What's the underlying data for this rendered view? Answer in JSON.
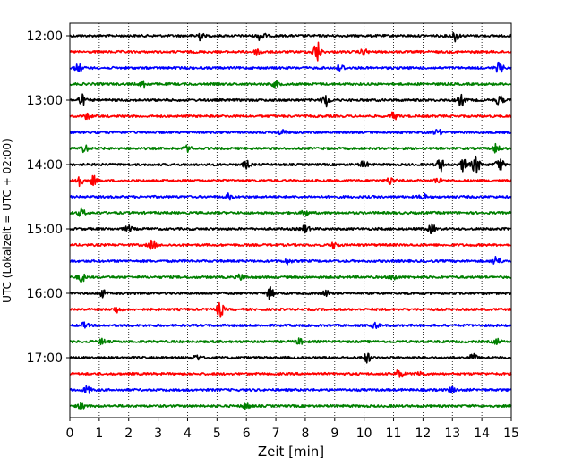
{
  "chart_data": {
    "type": "line",
    "title": "",
    "xlabel": "Zeit  [min]",
    "ylabel": "UTC (Lokalzeit = UTC + 02:00)",
    "x_range": [
      0,
      15
    ],
    "x_ticks": [
      0,
      1,
      2,
      3,
      4,
      5,
      6,
      7,
      8,
      9,
      10,
      11,
      12,
      13,
      14,
      15
    ],
    "y_tick_labels": [
      "12:00",
      "13:00",
      "14:00",
      "15:00",
      "16:00",
      "17:00"
    ],
    "grid": "vertical dotted",
    "colors": [
      "#000000",
      "#ff0000",
      "#0000ff",
      "#008000"
    ],
    "series": [
      {
        "start": "12:00",
        "color": "#000000",
        "events": [
          [
            4.4,
            5
          ],
          [
            6.5,
            6
          ],
          [
            13.1,
            6
          ]
        ]
      },
      {
        "start": "12:15",
        "color": "#ff0000",
        "events": [
          [
            8.4,
            12
          ],
          [
            6.4,
            4
          ],
          [
            10.0,
            3
          ]
        ]
      },
      {
        "start": "12:30",
        "color": "#0000ff",
        "events": [
          [
            0.3,
            4
          ],
          [
            9.2,
            4
          ],
          [
            14.6,
            6
          ]
        ]
      },
      {
        "start": "12:45",
        "color": "#008000",
        "events": [
          [
            2.5,
            3
          ],
          [
            7.0,
            3
          ]
        ]
      },
      {
        "start": "13:00",
        "color": "#000000",
        "events": [
          [
            0.4,
            6
          ],
          [
            8.7,
            7
          ],
          [
            13.3,
            6
          ],
          [
            14.6,
            5
          ]
        ]
      },
      {
        "start": "13:15",
        "color": "#ff0000",
        "events": [
          [
            11.0,
            4
          ],
          [
            0.6,
            3
          ]
        ]
      },
      {
        "start": "13:30",
        "color": "#0000ff",
        "events": [
          [
            7.2,
            3
          ],
          [
            12.5,
            3
          ]
        ]
      },
      {
        "start": "13:45",
        "color": "#008000",
        "events": [
          [
            0.5,
            4
          ],
          [
            4.0,
            3
          ],
          [
            14.5,
            5
          ]
        ]
      },
      {
        "start": "14:00",
        "color": "#000000",
        "events": [
          [
            6.0,
            4
          ],
          [
            10.0,
            4
          ],
          [
            12.6,
            7
          ],
          [
            13.4,
            8
          ],
          [
            13.8,
            10
          ],
          [
            14.6,
            8
          ]
        ]
      },
      {
        "start": "14:15",
        "color": "#ff0000",
        "events": [
          [
            0.3,
            7
          ],
          [
            0.8,
            5
          ],
          [
            10.9,
            4
          ],
          [
            12.5,
            3
          ]
        ]
      },
      {
        "start": "14:30",
        "color": "#0000ff",
        "events": [
          [
            5.4,
            3
          ],
          [
            12.0,
            3
          ]
        ]
      },
      {
        "start": "14:45",
        "color": "#008000",
        "events": [
          [
            0.4,
            4
          ],
          [
            8.0,
            3
          ]
        ]
      },
      {
        "start": "15:00",
        "color": "#000000",
        "events": [
          [
            8.0,
            4
          ],
          [
            12.3,
            5
          ],
          [
            2.0,
            3
          ]
        ]
      },
      {
        "start": "15:15",
        "color": "#ff0000",
        "events": [
          [
            2.8,
            5
          ],
          [
            9.0,
            3
          ]
        ]
      },
      {
        "start": "15:30",
        "color": "#0000ff",
        "events": [
          [
            14.5,
            6
          ],
          [
            7.4,
            3
          ]
        ]
      },
      {
        "start": "15:45",
        "color": "#008000",
        "events": [
          [
            0.4,
            5
          ],
          [
            5.8,
            3
          ],
          [
            11.0,
            3
          ]
        ]
      },
      {
        "start": "16:00",
        "color": "#000000",
        "events": [
          [
            1.1,
            4
          ],
          [
            6.8,
            6
          ],
          [
            8.7,
            3
          ]
        ]
      },
      {
        "start": "16:15",
        "color": "#ff0000",
        "events": [
          [
            5.1,
            8
          ],
          [
            1.6,
            3
          ]
        ]
      },
      {
        "start": "16:30",
        "color": "#0000ff",
        "events": [
          [
            0.5,
            3
          ],
          [
            10.4,
            3
          ]
        ]
      },
      {
        "start": "16:45",
        "color": "#008000",
        "events": [
          [
            1.1,
            3
          ],
          [
            7.8,
            3
          ],
          [
            14.5,
            3
          ]
        ]
      },
      {
        "start": "17:00",
        "color": "#000000",
        "events": [
          [
            10.1,
            5
          ],
          [
            13.7,
            4
          ],
          [
            4.3,
            3
          ]
        ]
      },
      {
        "start": "17:15",
        "color": "#ff0000",
        "events": [
          [
            11.2,
            5
          ],
          [
            11.9,
            3
          ]
        ]
      },
      {
        "start": "17:30",
        "color": "#0000ff",
        "events": [
          [
            0.6,
            4
          ],
          [
            13.0,
            3
          ]
        ]
      },
      {
        "start": "17:45",
        "color": "#008000",
        "events": [
          [
            0.4,
            3
          ],
          [
            6.0,
            3
          ]
        ]
      }
    ]
  }
}
